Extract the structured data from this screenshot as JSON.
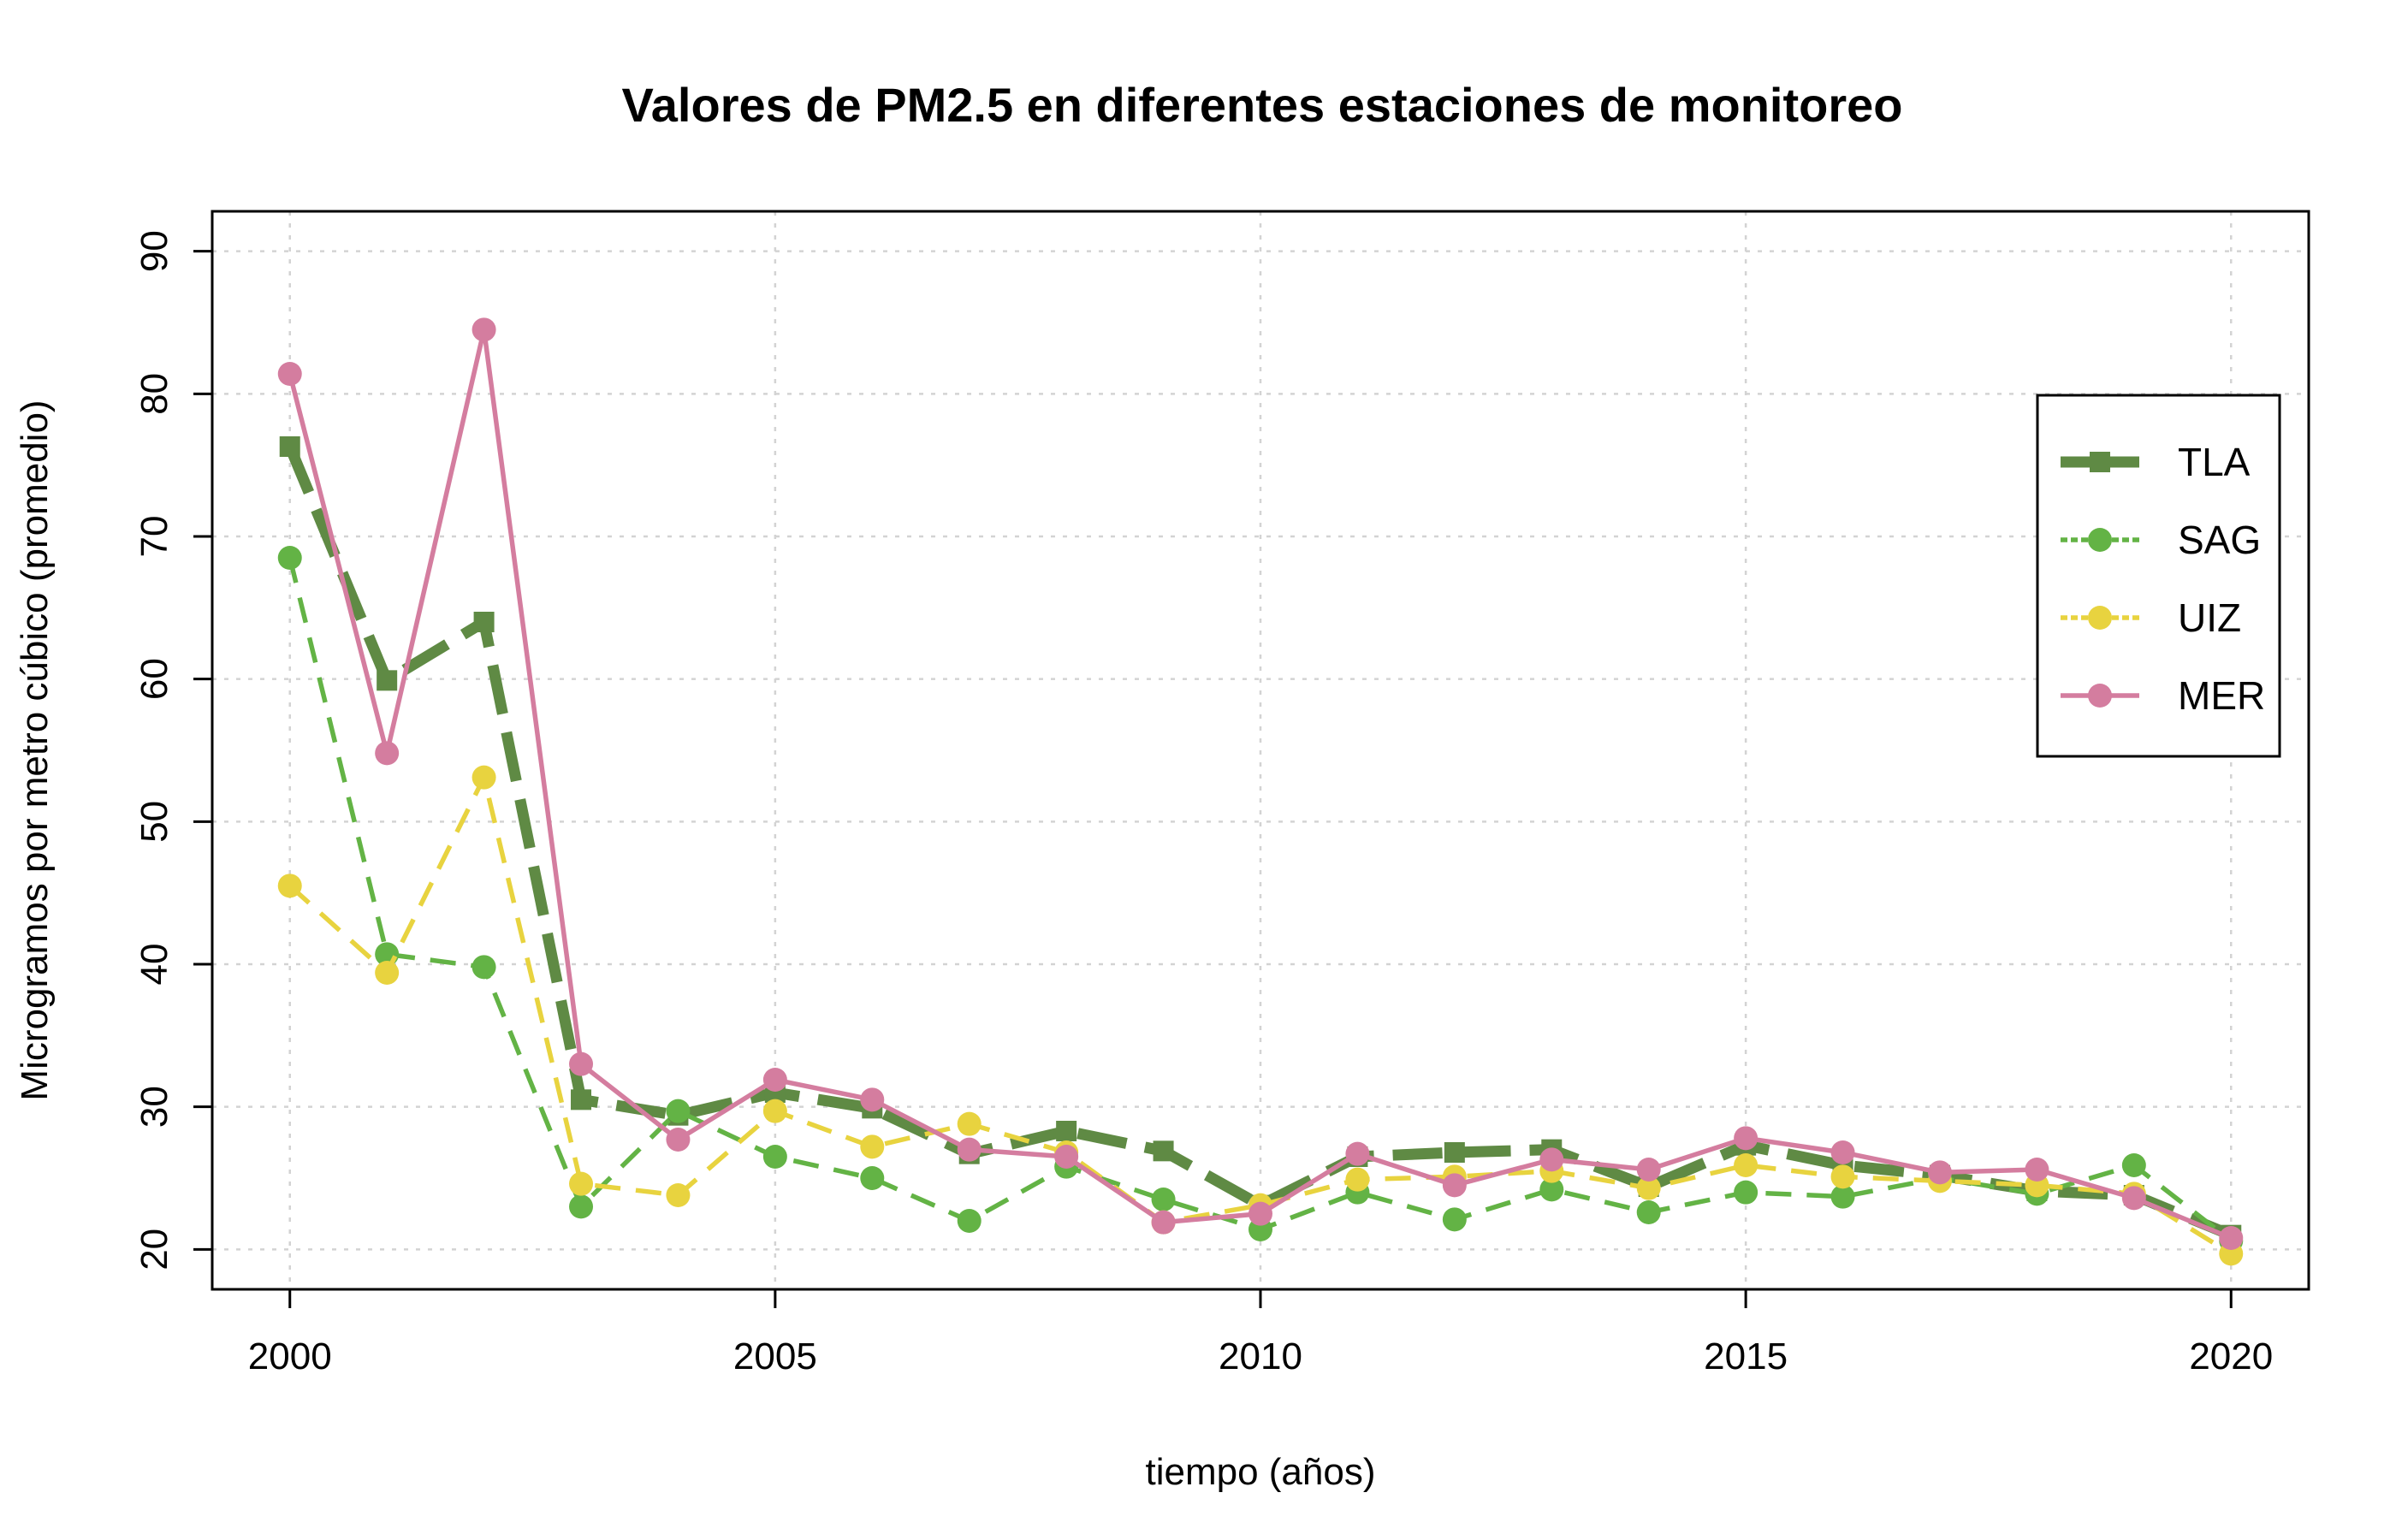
{
  "chart_data": {
    "type": "line",
    "title": "Valores de PM2.5 en diferentes estaciones de monitoreo",
    "xlabel": "tiempo (años)",
    "ylabel": "Microgramos por metro cúbico (promedio)",
    "xlim": [
      1999.2,
      2020.8
    ],
    "ylim": [
      17.2,
      92.8
    ],
    "x_ticks": [
      2000,
      2005,
      2010,
      2015,
      2020
    ],
    "y_ticks": [
      20,
      30,
      40,
      50,
      60,
      70,
      80,
      90
    ],
    "grid": true,
    "legend_position": "top-right",
    "x": [
      2000,
      2001,
      2002,
      2003,
      2004,
      2005,
      2006,
      2007,
      2008,
      2009,
      2010,
      2011,
      2012,
      2013,
      2014,
      2015,
      2016,
      2017,
      2018,
      2019,
      2020
    ],
    "series": [
      {
        "name": "TLA",
        "color": "#5f8a44",
        "line": "dashed-thick",
        "marker": "square",
        "values": [
          76.3,
          59.9,
          64.0,
          30.5,
          29.4,
          31.0,
          29.9,
          26.7,
          28.3,
          26.9,
          23.1,
          26.5,
          26.8,
          27.0,
          24.4,
          27.3,
          25.9,
          25.2,
          24.1,
          23.8,
          21.0
        ]
      },
      {
        "name": "SAG",
        "color": "#63b345",
        "line": "dashed",
        "marker": "circle",
        "values": [
          68.5,
          40.7,
          39.8,
          23.0,
          29.7,
          26.5,
          25.0,
          22.0,
          25.8,
          23.5,
          21.4,
          24.0,
          22.1,
          24.2,
          22.6,
          24.0,
          23.7,
          25.0,
          23.9,
          25.9,
          20.6
        ]
      },
      {
        "name": "UIZ",
        "color": "#e8d33f",
        "line": "dashed",
        "marker": "circle",
        "values": [
          45.5,
          39.4,
          53.1,
          24.6,
          23.8,
          29.7,
          27.2,
          28.8,
          26.8,
          21.9,
          23.1,
          24.9,
          25.1,
          25.5,
          24.3,
          25.9,
          25.1,
          24.8,
          24.5,
          23.9,
          19.7
        ]
      },
      {
        "name": "MER",
        "color": "#d47d9f",
        "line": "solid",
        "marker": "circle",
        "values": [
          81.4,
          54.8,
          84.5,
          33.0,
          27.7,
          31.9,
          30.5,
          27.0,
          26.5,
          21.9,
          22.5,
          26.7,
          24.5,
          26.3,
          25.6,
          27.8,
          26.8,
          25.4,
          25.6,
          23.6,
          20.8
        ]
      }
    ]
  }
}
